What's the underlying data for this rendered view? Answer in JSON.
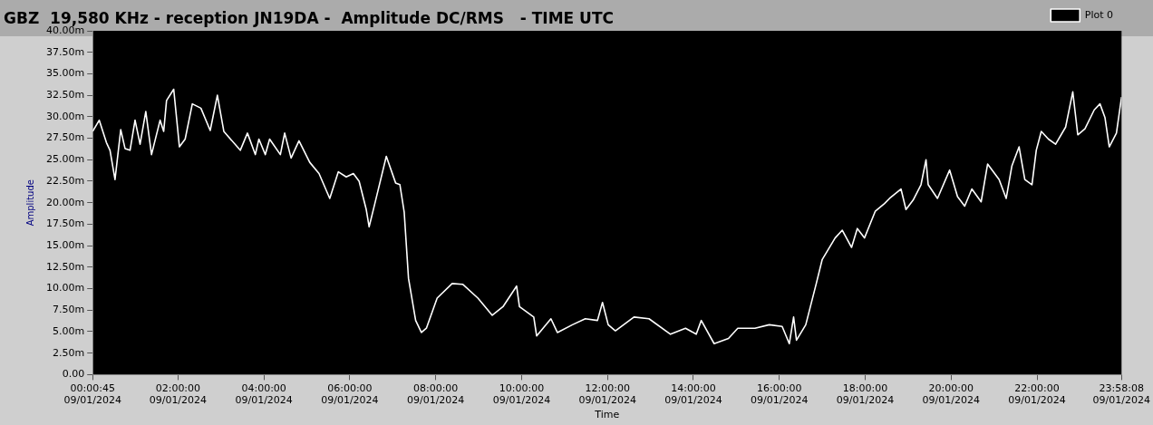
{
  "chart_data": {
    "type": "line",
    "title": "GBZ  19,580 KHz - reception JN19DA -  Amplitude DC/RMS   - TIME UTC",
    "xlabel": "Time",
    "ylabel": "Amplitude",
    "legend": "top right",
    "grid": false,
    "marker": "none",
    "line_style": "solid",
    "xlim": [
      "2024-01-09T00:00:45",
      "2024-01-09T23:58:08"
    ],
    "xticks": [
      {
        "value": "2024-01-09T00:00:45",
        "label": "00:00:45\n09/01/2024"
      },
      {
        "value": "2024-01-09T02:00",
        "label": "02:00:00\n09/01/2024"
      },
      {
        "value": "2024-01-09T04:00",
        "label": "04:00:00\n09/01/2024"
      },
      {
        "value": "2024-01-09T06:00",
        "label": "06:00:00\n09/01/2024"
      },
      {
        "value": "2024-01-09T08:00",
        "label": "08:00:00\n09/01/2024"
      },
      {
        "value": "2024-01-09T10:00",
        "label": "10:00:00\n09/01/2024"
      },
      {
        "value": "2024-01-09T12:00",
        "label": "12:00:00\n09/01/2024"
      },
      {
        "value": "2024-01-09T14:00",
        "label": "14:00:00\n09/01/2024"
      },
      {
        "value": "2024-01-09T16:00",
        "label": "16:00:00\n09/01/2024"
      },
      {
        "value": "2024-01-09T18:00",
        "label": "18:00:00\n09/01/2024"
      },
      {
        "value": "2024-01-09T20:00",
        "label": "20:00:00\n09/01/2024"
      },
      {
        "value": "2024-01-09T22:00",
        "label": "22:00:00\n09/01/2024"
      },
      {
        "value": "2024-01-09T23:58:08",
        "label": "23:58:08\n09/01/2024"
      }
    ],
    "ylim": [
      0,
      40
    ],
    "yticks": [
      {
        "value": 0,
        "label": "0.00"
      },
      {
        "value": 2.5,
        "label": "2.50m"
      },
      {
        "value": 5,
        "label": "5.00m"
      },
      {
        "value": 7.5,
        "label": "7.50m"
      },
      {
        "value": 10,
        "label": "10.00m"
      },
      {
        "value": 12.5,
        "label": "12.50m"
      },
      {
        "value": 15,
        "label": "15.00m"
      },
      {
        "value": 17.5,
        "label": "17.50m"
      },
      {
        "value": 20,
        "label": "20.00m"
      },
      {
        "value": 22.5,
        "label": "22.50m"
      },
      {
        "value": 25,
        "label": "25.00m"
      },
      {
        "value": 27.5,
        "label": "27.50m"
      },
      {
        "value": 30,
        "label": "30.00m"
      },
      {
        "value": 32.5,
        "label": "32.50m"
      },
      {
        "value": 35,
        "label": "35.00m"
      },
      {
        "value": 37.5,
        "label": "37.50m"
      },
      {
        "value": 40,
        "label": "40.00m"
      }
    ],
    "series": [
      {
        "name": "Plot 0",
        "color": "#ffffff",
        "x": [
          "2024-01-09T00:00:45",
          "2024-01-09T00:10",
          "2024-01-09T00:20",
          "2024-01-09T00:25",
          "2024-01-09T00:32",
          "2024-01-09T00:40",
          "2024-01-09T00:46",
          "2024-01-09T00:53",
          "2024-01-09T01:00",
          "2024-01-09T01:07",
          "2024-01-09T01:15",
          "2024-01-09T01:23",
          "2024-01-09T01:35",
          "2024-01-09T01:40",
          "2024-01-09T01:44",
          "2024-01-09T01:54",
          "2024-01-09T02:02",
          "2024-01-09T02:10",
          "2024-01-09T02:20",
          "2024-01-09T02:32",
          "2024-01-09T02:45",
          "2024-01-09T02:55",
          "2024-01-09T03:04",
          "2024-01-09T03:27",
          "2024-01-09T03:37",
          "2024-01-09T03:48",
          "2024-01-09T03:53",
          "2024-01-09T04:02",
          "2024-01-09T04:08",
          "2024-01-09T04:23",
          "2024-01-09T04:29",
          "2024-01-09T04:38",
          "2024-01-09T04:49",
          "2024-01-09T05:04",
          "2024-01-09T05:17",
          "2024-01-09T05:32",
          "2024-01-09T05:44",
          "2024-01-09T05:55",
          "2024-01-09T06:05",
          "2024-01-09T06:13",
          "2024-01-09T06:23",
          "2024-01-09T06:27",
          "2024-01-09T06:35",
          "2024-01-09T06:51",
          "2024-01-09T07:04",
          "2024-01-09T07:10",
          "2024-01-09T07:16",
          "2024-01-09T07:22",
          "2024-01-09T07:32",
          "2024-01-09T07:40",
          "2024-01-09T07:47",
          "2024-01-09T08:02",
          "2024-01-09T08:23",
          "2024-01-09T08:38",
          "2024-01-09T08:59",
          "2024-01-09T09:19",
          "2024-01-09T09:34",
          "2024-01-09T09:53",
          "2024-01-09T09:57",
          "2024-01-09T10:17",
          "2024-01-09T10:21",
          "2024-01-09T10:41",
          "2024-01-09T10:50",
          "2024-01-09T11:11",
          "2024-01-09T11:29",
          "2024-01-09T11:46",
          "2024-01-09T11:53",
          "2024-01-09T12:01",
          "2024-01-09T12:11",
          "2024-01-09T12:37",
          "2024-01-09T12:58",
          "2024-01-09T13:28",
          "2024-01-09T13:49",
          "2024-01-09T14:04",
          "2024-01-09T14:11",
          "2024-01-09T14:29",
          "2024-01-09T14:49",
          "2024-01-09T15:02",
          "2024-01-09T15:26",
          "2024-01-09T15:46",
          "2024-01-09T16:04",
          "2024-01-09T16:14",
          "2024-01-09T16:20",
          "2024-01-09T16:24",
          "2024-01-09T16:37",
          "2024-01-09T16:52",
          "2024-01-09T17:00",
          "2024-01-09T17:18",
          "2024-01-09T17:28",
          "2024-01-09T17:41",
          "2024-01-09T17:49",
          "2024-01-09T17:59",
          "2024-01-09T18:14",
          "2024-01-09T18:27",
          "2024-01-09T18:34",
          "2024-01-09T18:50",
          "2024-01-09T18:57",
          "2024-01-09T19:07",
          "2024-01-09T19:18",
          "2024-01-09T19:25",
          "2024-01-09T19:28",
          "2024-01-09T19:41",
          "2024-01-09T19:58",
          "2024-01-09T20:09",
          "2024-01-09T20:19",
          "2024-01-09T20:29",
          "2024-01-09T20:42",
          "2024-01-09T20:51",
          "2024-01-09T21:07",
          "2024-01-09T21:17",
          "2024-01-09T21:25",
          "2024-01-09T21:35",
          "2024-01-09T21:43",
          "2024-01-09T21:53",
          "2024-01-09T21:59",
          "2024-01-09T22:06",
          "2024-01-09T22:16",
          "2024-01-09T22:26",
          "2024-01-09T22:40",
          "2024-01-09T22:50",
          "2024-01-09T22:57",
          "2024-01-09T23:07",
          "2024-01-09T23:20",
          "2024-01-09T23:28",
          "2024-01-09T23:35",
          "2024-01-09T23:41",
          "2024-01-09T23:51",
          "2024-01-09T23:58:08"
        ],
        "values": [
          28.3,
          29.6,
          27.0,
          26.1,
          22.7,
          28.5,
          26.3,
          26.1,
          29.6,
          26.8,
          30.6,
          25.6,
          29.6,
          28.3,
          31.9,
          33.2,
          26.5,
          27.4,
          31.5,
          31.0,
          28.4,
          32.5,
          28.3,
          26.1,
          28.1,
          25.6,
          27.4,
          25.6,
          27.4,
          25.6,
          28.1,
          25.2,
          27.2,
          24.7,
          23.4,
          20.5,
          23.6,
          23.0,
          23.4,
          22.5,
          19.2,
          17.2,
          19.9,
          25.4,
          22.3,
          22.1,
          18.9,
          11.2,
          6.3,
          4.9,
          5.4,
          8.9,
          10.6,
          10.5,
          8.9,
          6.9,
          7.9,
          10.3,
          7.9,
          6.7,
          4.5,
          6.5,
          4.9,
          5.8,
          6.5,
          6.3,
          8.4,
          5.8,
          5.1,
          6.7,
          6.5,
          4.7,
          5.4,
          4.7,
          6.3,
          3.6,
          4.2,
          5.4,
          5.4,
          5.8,
          5.6,
          3.6,
          6.7,
          4.0,
          5.8,
          10.7,
          13.4,
          15.9,
          16.8,
          14.8,
          17.0,
          15.9,
          19.0,
          19.9,
          20.5,
          21.6,
          19.2,
          20.3,
          22.1,
          25.0,
          22.1,
          20.5,
          23.8,
          20.7,
          19.6,
          21.6,
          20.1,
          24.5,
          22.7,
          20.5,
          24.3,
          26.5,
          22.7,
          22.1,
          26.1,
          28.3,
          27.4,
          26.8,
          28.8,
          32.9,
          27.9,
          28.6,
          30.8,
          31.5,
          29.9,
          26.5,
          28.1,
          32.3
        ]
      }
    ]
  }
}
